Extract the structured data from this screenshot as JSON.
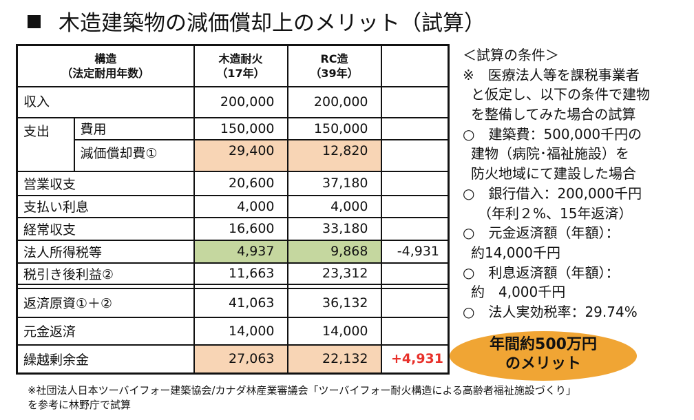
{
  "title": "木造建築物の減価償却上のメリット（試算）",
  "table": {
    "header": {
      "col0_line1": "構造",
      "col0_line2": "（法定耐用年数）",
      "col1_line1": "木造耐火",
      "col1_line2": "（17年）",
      "col2_line1": "RC造",
      "col2_line2": "（39年）"
    },
    "rows": [
      {
        "label": "収入",
        "wood": "200,000",
        "rc": "200,000",
        "diff": ""
      },
      {
        "group": "支出",
        "label": "費用",
        "wood": "150,000",
        "rc": "150,000",
        "diff": ""
      },
      {
        "label": "減価償却費①",
        "wood": "29,400",
        "rc": "12,820",
        "diff": ""
      },
      {
        "label": "営業収支",
        "wood": "20,600",
        "rc": "37,180",
        "diff": ""
      },
      {
        "label": "支払い利息",
        "wood": "4,000",
        "rc": "4,000",
        "diff": ""
      },
      {
        "label": "経常収支",
        "wood": "16,600",
        "rc": "33,180",
        "diff": ""
      },
      {
        "label": "法人所得税等",
        "wood": "4,937",
        "rc": "9,868",
        "diff": "-4,931"
      },
      {
        "label": "税引き後利益②",
        "wood": "11,663",
        "rc": "23,312",
        "diff": ""
      },
      {
        "label": "返済原資①＋②",
        "wood": "41,063",
        "rc": "36,132",
        "diff": ""
      },
      {
        "label": "元金返済",
        "wood": "14,000",
        "rc": "14,000",
        "diff": ""
      },
      {
        "label": "繰越剰余金",
        "wood": "27,063",
        "rc": "22,132",
        "diff": "+4,931"
      }
    ],
    "colors": {
      "peach": "#F8D5B5",
      "green": "#C5D79F",
      "red": "#E8302A"
    }
  },
  "conditions": [
    "＜試算の条件＞",
    "※　医療法人等を課税事業者",
    "と仮定し、以下の条件で建物",
    "を整備してみた場合の試算",
    "○　建築費：500,000千円の",
    "建物（病院･福祉施設）を",
    "防火地域にて建設した場合",
    "○　銀行借入：200,000千円",
    "（年利２%、15年返済）",
    "○　元金返済額（年額）：",
    "約14,000千円",
    "○　利息返済額（年額）：",
    "約　4,000千円",
    "○　法人実効税率：29.74%"
  ],
  "callout": {
    "line1": "年間約500万円",
    "line2": "のメリット",
    "color": "#F0A534"
  },
  "footnote": {
    "line1": "※社団法人日本ツーバイフォー建築協会/カナダ林産業審議会「ツーバイフォー耐火構造による高齢者福祉施設づくり」",
    "line2": "を参考に林野庁で試算"
  }
}
